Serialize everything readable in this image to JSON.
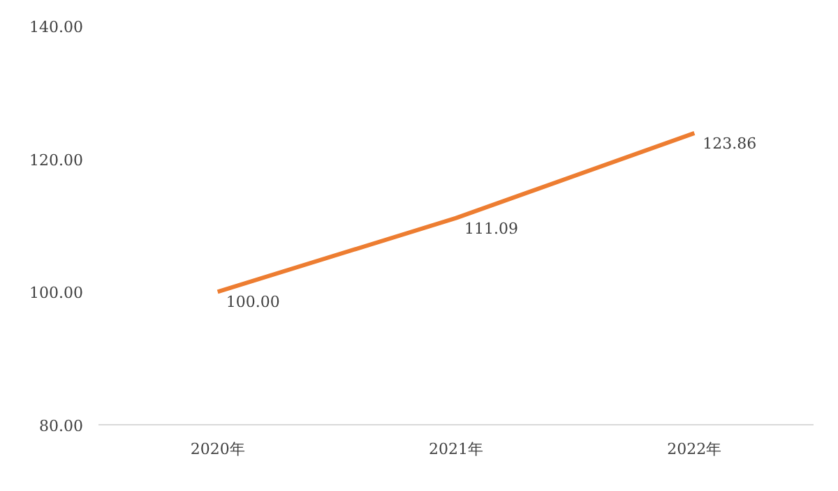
{
  "chart_data": {
    "type": "line",
    "categories": [
      "2020年",
      "2021年",
      "2022年"
    ],
    "series": [
      {
        "color": "#ed7d31",
        "values": [
          100.0,
          111.09,
          123.86
        ],
        "value_labels": [
          "100.00",
          "111.09",
          "123.86"
        ]
      }
    ],
    "ylim": [
      80,
      140
    ],
    "yticks": [
      {
        "value": 80,
        "label": "80.00"
      },
      {
        "value": 100,
        "label": "100.00"
      },
      {
        "value": 120,
        "label": "120.00"
      },
      {
        "value": 140,
        "label": "140.00"
      }
    ],
    "grid": false,
    "marker": "none",
    "line_style": "solid"
  }
}
